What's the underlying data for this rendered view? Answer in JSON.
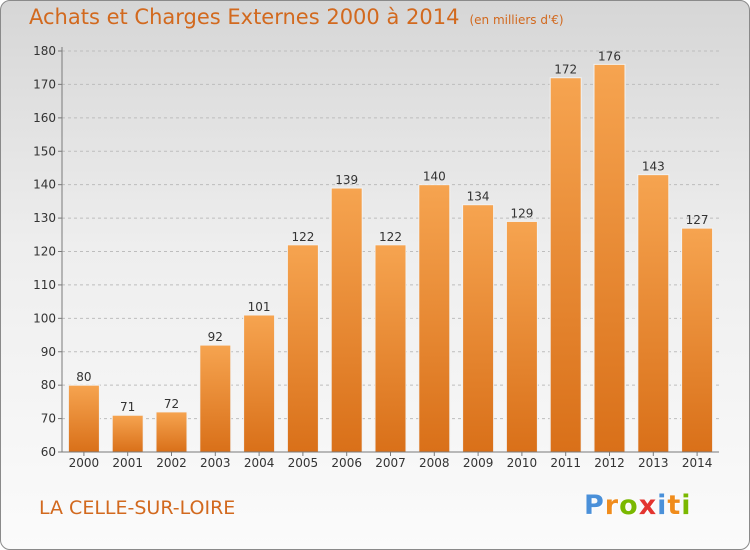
{
  "title": "Achats et Charges Externes 2000 à 2014",
  "subtitle": "(en milliers d'€)",
  "commune": "LA CELLE-SUR-LOIRE",
  "logo": {
    "text": "Proxiti",
    "letters": [
      {
        "ch": "P",
        "color": "#4a90d9"
      },
      {
        "ch": "r",
        "color": "#f08c1c"
      },
      {
        "ch": "o",
        "color": "#7ab800"
      },
      {
        "ch": "x",
        "color": "#e3342f"
      },
      {
        "ch": "i",
        "color": "#4a90d9"
      },
      {
        "ch": "t",
        "color": "#f08c1c"
      },
      {
        "ch": "i",
        "color": "#7ab800"
      }
    ]
  },
  "colors": {
    "accent": "#d2691e",
    "bar_top": "#f6a450",
    "bar_bottom": "#d97019",
    "axis": "#7a7a7a",
    "grid": "#bdbdbd"
  },
  "chart_data": {
    "type": "bar",
    "categories": [
      "2000",
      "2001",
      "2002",
      "2003",
      "2004",
      "2005",
      "2006",
      "2007",
      "2008",
      "2009",
      "2010",
      "2011",
      "2012",
      "2013",
      "2014"
    ],
    "values": [
      80,
      71,
      72,
      92,
      101,
      122,
      139,
      122,
      140,
      134,
      129,
      172,
      176,
      143,
      127
    ],
    "data_labels": [
      "80",
      "71",
      "72",
      "92",
      "101",
      "122",
      "139",
      "122",
      "140",
      "134",
      "129",
      "172",
      "176",
      "143",
      "127"
    ],
    "title": "Achats et Charges Externes 2000 à 2014",
    "xlabel": "",
    "ylabel": "",
    "ylim": [
      60,
      180
    ],
    "yticks": [
      60,
      70,
      80,
      90,
      100,
      110,
      120,
      130,
      140,
      150,
      160,
      170,
      180
    ],
    "grid": true
  }
}
